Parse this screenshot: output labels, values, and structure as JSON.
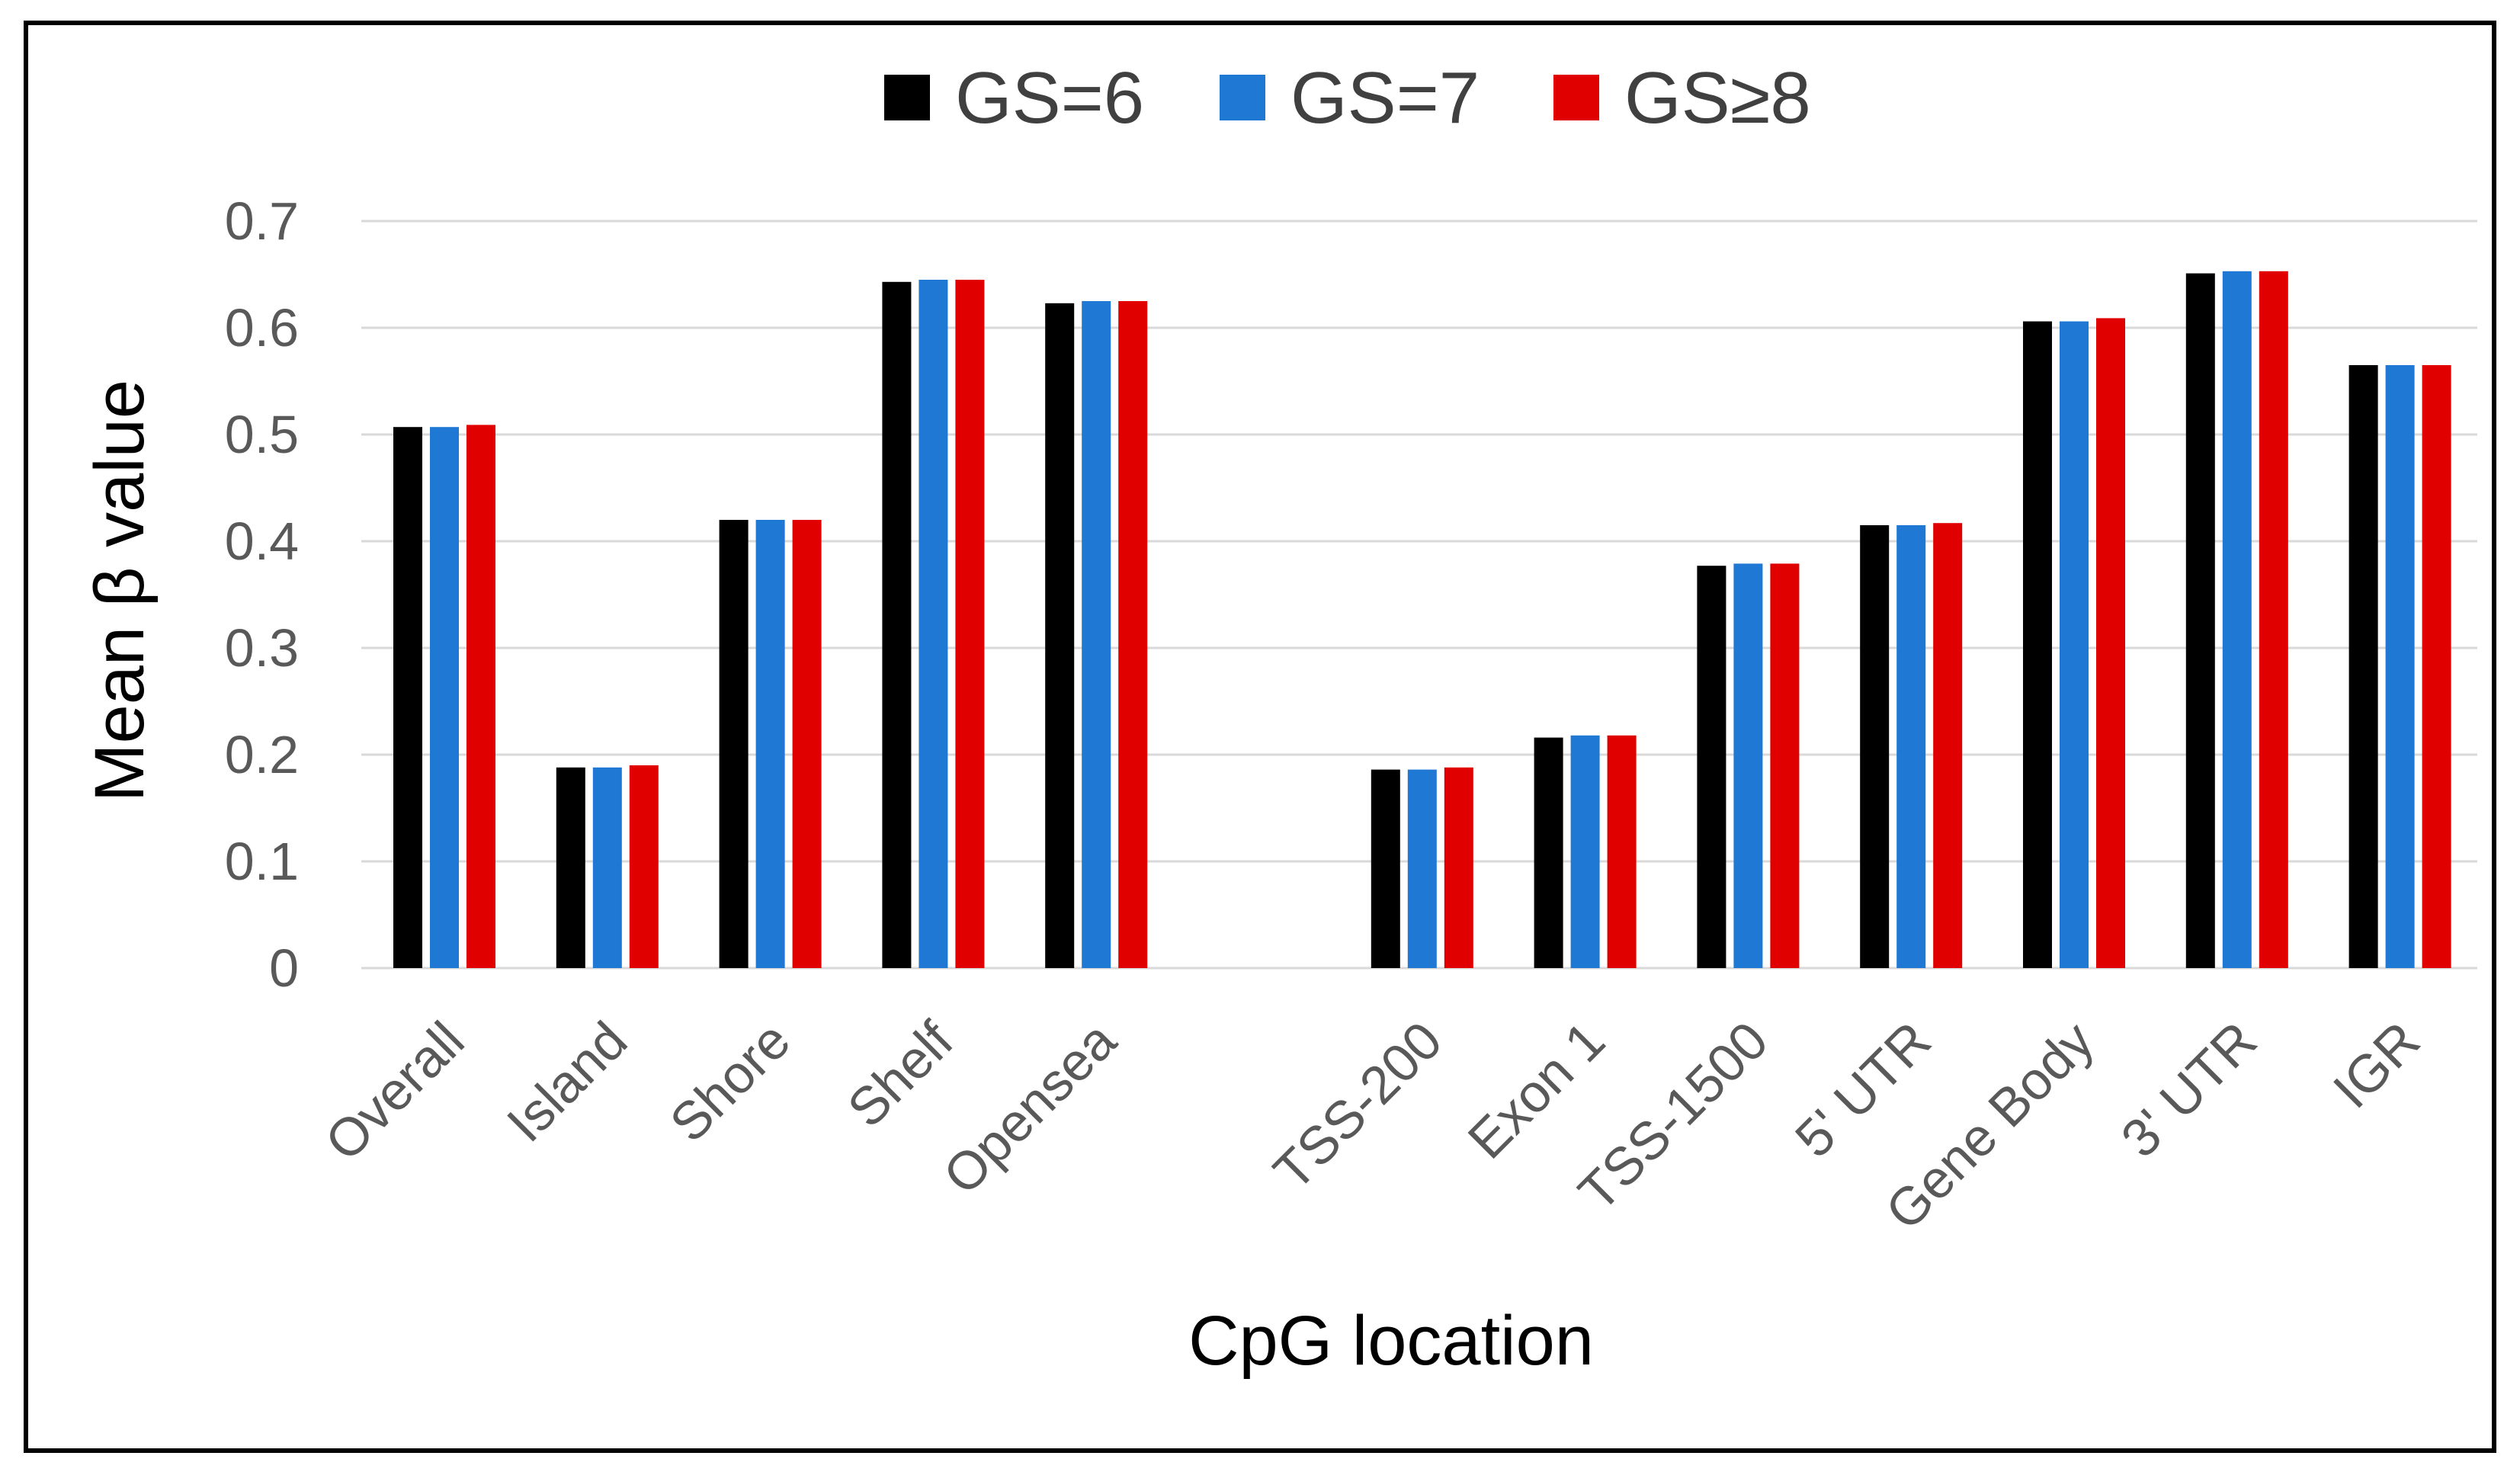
{
  "chart_data": {
    "type": "bar",
    "title": "",
    "xlabel": "CpG location",
    "ylabel": "Mean β value",
    "ylim": [
      0,
      0.7
    ],
    "yticks": [
      "0",
      "0.1",
      "0.2",
      "0.3",
      "0.4",
      "0.5",
      "0.6",
      "0.7"
    ],
    "grid": true,
    "legend_position": "top-center",
    "categories": [
      "Overall",
      "Island",
      "Shore",
      "Shelf",
      "Opensea",
      "",
      "TSS-200",
      "Exon 1",
      "TSS-1500",
      "5' UTR",
      "Gene Body",
      "3' UTR",
      "IGR"
    ],
    "series": [
      {
        "name": "GS=6",
        "color": "#000000",
        "values": [
          0.507,
          0.188,
          0.42,
          0.643,
          0.623,
          null,
          0.186,
          0.216,
          0.377,
          0.415,
          0.606,
          0.651,
          0.565
        ]
      },
      {
        "name": "GS=7",
        "color": "#1f78d4",
        "values": [
          0.507,
          0.188,
          0.42,
          0.645,
          0.625,
          null,
          0.186,
          0.218,
          0.379,
          0.415,
          0.606,
          0.653,
          0.565
        ]
      },
      {
        "name": "GS≥8",
        "color": "#e00000",
        "values": [
          0.509,
          0.19,
          0.42,
          0.645,
          0.625,
          null,
          0.188,
          0.218,
          0.379,
          0.417,
          0.609,
          0.653,
          0.565
        ]
      }
    ]
  }
}
